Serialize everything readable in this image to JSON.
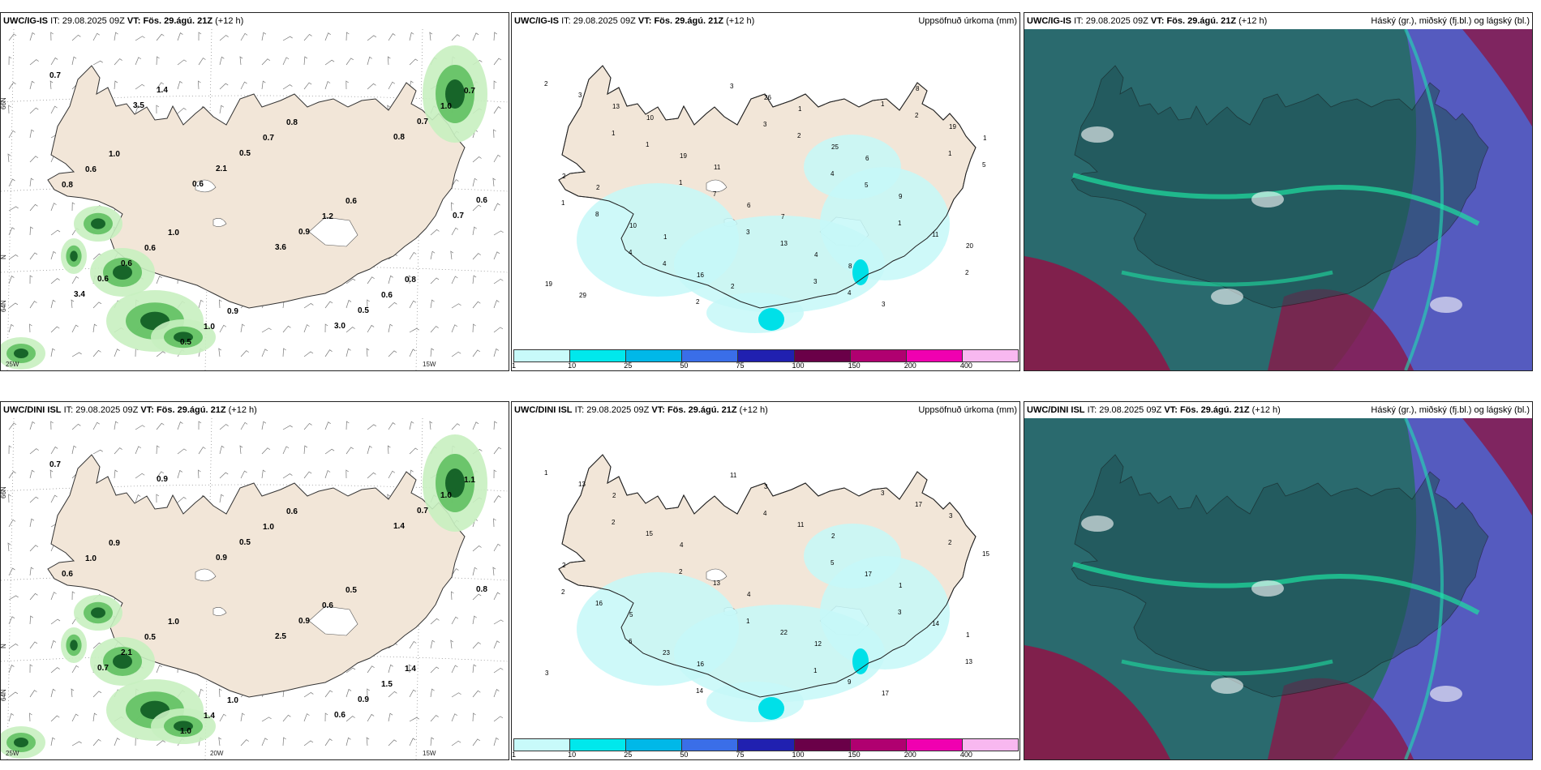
{
  "panels": [
    {
      "id": "p1",
      "model": "UWC/IG-IS",
      "it_label": "IT:",
      "it_value": "29.08.2025 09Z",
      "vt_label": "VT:",
      "vt_value": "Fös. 29.ágú. 21Z",
      "lead": "(+12 h)",
      "right_title": "",
      "lat_labels": [
        "66N",
        "64N",
        "N"
      ],
      "lon_labels": [
        "25W",
        "15W"
      ],
      "values": [
        "0.7",
        "1.0",
        "1.0",
        "0.9",
        "0.8",
        "0.6",
        "0.8",
        "0.7",
        "0.6",
        "0.6",
        "1.0",
        "0.7",
        "1.2",
        "0.6",
        "1.0",
        "0.8",
        "0.6",
        "0.5",
        "0.5",
        "0.9",
        "0.5",
        "0.7",
        "0.6",
        "0.6",
        "1.4",
        "2.1",
        "3.6",
        "3.0",
        "0.8",
        "0.7",
        "3.4",
        "3.5",
        "0.6"
      ]
    },
    {
      "id": "p2",
      "model": "UWC/IG-IS",
      "it_label": "IT:",
      "it_value": "29.08.2025 09Z",
      "vt_label": "VT:",
      "vt_value": "Fös. 29.ágú. 21Z",
      "lead": "(+12 h)",
      "right_title": "Uppsöfnuð úrkoma (mm)",
      "values": [
        "2",
        "1",
        "1",
        "3",
        "3",
        "1",
        "1",
        "1",
        "4",
        "2",
        "3",
        "4",
        "1",
        "2",
        "3",
        "1",
        "7",
        "13",
        "4",
        "2",
        "5",
        "8",
        "4",
        "3",
        "2",
        "5",
        "11",
        "19",
        "13",
        "19",
        "6",
        "4",
        "3",
        "19",
        "2",
        "10",
        "16",
        "26",
        "25",
        "9",
        "20",
        "29",
        "10",
        "11",
        "7",
        "8",
        "8",
        "1",
        "2",
        "1",
        "2",
        "1",
        "6"
      ]
    },
    {
      "id": "p3",
      "model": "UWC/IG-IS",
      "it_label": "IT:",
      "it_value": "29.08.2025 09Z",
      "vt_label": "VT:",
      "vt_value": "Fös. 29.ágú. 21Z",
      "lead": "(+12 h)",
      "right_title": "Háský (gr.), miðský (fj.bl.) og lágský (bl.)"
    },
    {
      "id": "p4",
      "model": "UWC/DINI ISL",
      "it_label": "IT:",
      "it_value": "29.08.2025 09Z",
      "vt_label": "VT:",
      "vt_value": "Fös. 29.ágú. 21Z",
      "lead": "(+12 h)",
      "right_title": "",
      "lat_labels": [
        "66N",
        "64N",
        "N"
      ],
      "lon_labels": [
        "25W",
        "20W",
        "15W"
      ],
      "values": [
        "0.7",
        "0.9",
        "1.0",
        "1.0",
        "0.6",
        "0.5",
        "1.4",
        "1.1",
        "1.0",
        "0.5",
        "1.4",
        "1.0",
        "0.6",
        "1.5",
        "1.0",
        "0.6",
        "2.1",
        "1.0",
        "0.5",
        "0.9",
        "0.9",
        "0.7",
        "0.8",
        "0.7",
        "0.9",
        "0.9",
        "2.5",
        "0.6",
        "1.4"
      ]
    },
    {
      "id": "p5",
      "model": "UWC/DINI ISL",
      "it_label": "IT:",
      "it_value": "29.08.2025 09Z",
      "vt_label": "VT:",
      "vt_value": "Fös. 29.ágú. 21Z",
      "lead": "(+12 h)",
      "right_title": "Uppsöfnuð úrkoma (mm)",
      "values": [
        "1",
        "2",
        "2",
        "1",
        "1",
        "3",
        "2",
        "2",
        "6",
        "14",
        "4",
        "5",
        "3",
        "13",
        "13",
        "15",
        "13",
        "22",
        "9",
        "17",
        "15",
        "16",
        "23",
        "11",
        "11",
        "17",
        "14",
        "3",
        "2",
        "4",
        "4",
        "12",
        "17",
        "3",
        "2",
        "5",
        "16",
        "3",
        "2",
        "1",
        "1"
      ]
    },
    {
      "id": "p6",
      "model": "UWC/DINI ISL",
      "it_label": "IT:",
      "it_value": "29.08.2025 09Z",
      "vt_label": "VT:",
      "vt_value": "Fös. 29.ágú. 21Z",
      "lead": "(+12 h)",
      "right_title": "Háský (gr.), miðský (fj.bl.) og lágský (bl.)"
    }
  ],
  "colorbar": {
    "ticks": [
      "1",
      "10",
      "25",
      "50",
      "75",
      "100",
      "150",
      "200",
      "400"
    ],
    "colors": [
      "#c8fafa",
      "#00e8ec",
      "#00b8e8",
      "#3a6ee8",
      "#2020b0",
      "#6a0048",
      "#b00070",
      "#f000b0",
      "#f8b8f0"
    ]
  },
  "colors": {
    "land": "#f2e6d8",
    "precip_light": "#c6f8f8",
    "precip_mid": "#00e0e8",
    "wind_green_light": "#c8f0c0",
    "wind_green_mid": "#60c060",
    "wind_green_dark": "#0e5a22",
    "cloud_high": "#2a6a6e",
    "cloud_mid": "#5a5ac8",
    "cloud_low": "#8a1848"
  }
}
